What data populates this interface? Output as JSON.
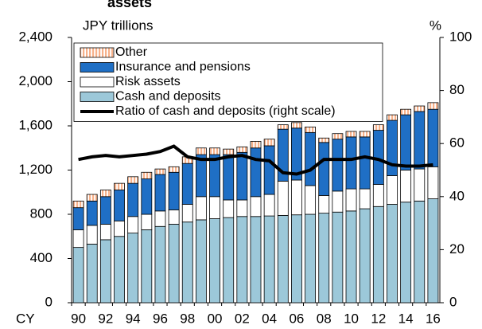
{
  "chart_data": {
    "type": "bar",
    "stacked": true,
    "title": "assets",
    "y_label": "JPY trillions",
    "y2_label": "%",
    "x_label": "CY",
    "categories": [
      "90",
      null,
      "92",
      null,
      "94",
      null,
      "96",
      null,
      "98",
      null,
      "00",
      null,
      "02",
      null,
      "04",
      null,
      "06",
      null,
      "08",
      null,
      "10",
      null,
      "12",
      null,
      "14",
      null,
      "16"
    ],
    "series": [
      {
        "name": "Cash and deposits",
        "color": "#9cc8d9",
        "values": [
          500,
          530,
          570,
          600,
          630,
          660,
          690,
          710,
          730,
          750,
          760,
          770,
          780,
          780,
          785,
          790,
          795,
          800,
          810,
          820,
          830,
          850,
          870,
          890,
          910,
          920,
          940
        ]
      },
      {
        "name": "Risk assets",
        "color": "#ffffff",
        "values": [
          160,
          170,
          140,
          140,
          150,
          140,
          140,
          130,
          160,
          210,
          200,
          160,
          150,
          180,
          195,
          310,
          315,
          260,
          160,
          190,
          200,
          180,
          200,
          260,
          290,
          290,
          290
        ]
      },
      {
        "name": "Insurance and pensions",
        "color": "#1f6fc5",
        "values": [
          200,
          220,
          250,
          280,
          300,
          320,
          330,
          340,
          370,
          380,
          380,
          410,
          430,
          440,
          440,
          470,
          470,
          480,
          480,
          470,
          470,
          470,
          490,
          500,
          500,
          520,
          520
        ]
      },
      {
        "name": "Other",
        "color": "#f7b18a",
        "hatched": true,
        "values": [
          60,
          60,
          60,
          60,
          60,
          60,
          50,
          50,
          60,
          60,
          60,
          50,
          50,
          60,
          60,
          40,
          50,
          50,
          40,
          50,
          50,
          50,
          50,
          50,
          50,
          50,
          60
        ]
      },
      {
        "name": "Ratio of cash and deposits (right scale)",
        "type": "line",
        "axis": "y2",
        "color": "#000000",
        "values": [
          54,
          55,
          55.5,
          55,
          55.5,
          56,
          57,
          59,
          55,
          54,
          54,
          55,
          55.5,
          54,
          53.5,
          49,
          48.5,
          50,
          54,
          54,
          54,
          55,
          54,
          52,
          51.5,
          51.5,
          52
        ]
      }
    ],
    "ylim": [
      0,
      2400
    ],
    "yticks": [
      0,
      400,
      800,
      {
        "value": 1200,
        "label": "1,200"
      },
      {
        "value": 1600,
        "label": "1,600"
      },
      {
        "value": 2000,
        "label": "2,000"
      },
      {
        "value": 2400,
        "label": "2,400"
      }
    ],
    "y2lim": [
      0,
      100
    ],
    "y2ticks": [
      0,
      20,
      40,
      60,
      80,
      100
    ],
    "legend": "top-left"
  }
}
